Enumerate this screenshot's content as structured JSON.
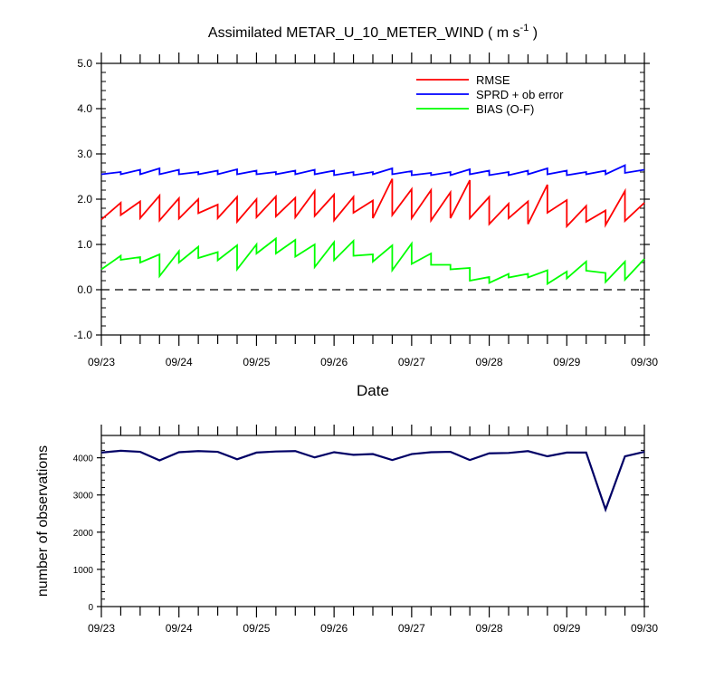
{
  "figure": {
    "title_main": "Assimilated METAR_U_10_METER_WIND ( m s",
    "title_sup": "-1",
    "title_end": " )"
  },
  "chart_data": [
    {
      "type": "line",
      "xlabel": "Date",
      "ylabel": "",
      "ylim": [
        -1.0,
        5.0
      ],
      "yticks": [
        "-1.0",
        "0.0",
        "1.0",
        "2.0",
        "3.0",
        "4.0",
        "5.0"
      ],
      "xlim": [
        "09/23 00:00",
        "09/30 00:00"
      ],
      "xticklabels": [
        "09/23",
        "09/24",
        "09/25",
        "09/26",
        "09/27",
        "09/28",
        "09/29",
        "09/30"
      ],
      "legend_position": "top-right",
      "zero_line": "dashed",
      "series": [
        {
          "name": "RMSE",
          "color": "#ff0000",
          "points": [
            [
              0.0,
              1.55
            ],
            [
              0.25,
              1.92
            ],
            [
              0.25,
              1.65
            ],
            [
              0.5,
              1.95
            ],
            [
              0.5,
              1.58
            ],
            [
              0.75,
              2.08
            ],
            [
              0.75,
              1.53
            ],
            [
              1.0,
              2.02
            ],
            [
              1.0,
              1.57
            ],
            [
              1.25,
              2.0
            ],
            [
              1.25,
              1.69
            ],
            [
              1.5,
              1.88
            ],
            [
              1.5,
              1.58
            ],
            [
              1.75,
              2.05
            ],
            [
              1.75,
              1.5
            ],
            [
              2.0,
              2.0
            ],
            [
              2.0,
              1.6
            ],
            [
              2.25,
              2.06
            ],
            [
              2.25,
              1.62
            ],
            [
              2.5,
              2.03
            ],
            [
              2.5,
              1.6
            ],
            [
              2.75,
              2.18
            ],
            [
              2.75,
              1.63
            ],
            [
              3.0,
              2.1
            ],
            [
              3.0,
              1.53
            ],
            [
              3.25,
              2.05
            ],
            [
              3.25,
              1.7
            ],
            [
              3.5,
              1.97
            ],
            [
              3.5,
              1.58
            ],
            [
              3.75,
              2.45
            ],
            [
              3.75,
              1.65
            ],
            [
              4.0,
              2.22
            ],
            [
              4.0,
              1.58
            ],
            [
              4.25,
              2.2
            ],
            [
              4.25,
              1.53
            ],
            [
              4.5,
              2.15
            ],
            [
              4.5,
              1.58
            ],
            [
              4.75,
              2.42
            ],
            [
              4.75,
              1.58
            ],
            [
              5.0,
              2.05
            ],
            [
              5.0,
              1.45
            ],
            [
              5.25,
              1.9
            ],
            [
              5.25,
              1.58
            ],
            [
              5.5,
              1.95
            ],
            [
              5.5,
              1.45
            ],
            [
              5.75,
              2.32
            ],
            [
              5.75,
              1.7
            ],
            [
              6.0,
              1.98
            ],
            [
              6.0,
              1.4
            ],
            [
              6.25,
              1.85
            ],
            [
              6.25,
              1.5
            ],
            [
              6.5,
              1.75
            ],
            [
              6.5,
              1.43
            ],
            [
              6.75,
              2.18
            ],
            [
              6.75,
              1.52
            ],
            [
              7.0,
              1.92
            ]
          ]
        },
        {
          "name": "SPRD + ob error",
          "color": "#0000ff",
          "points": [
            [
              0.0,
              2.55
            ],
            [
              0.25,
              2.6
            ],
            [
              0.25,
              2.55
            ],
            [
              0.5,
              2.65
            ],
            [
              0.5,
              2.55
            ],
            [
              0.75,
              2.68
            ],
            [
              0.75,
              2.55
            ],
            [
              1.0,
              2.65
            ],
            [
              1.0,
              2.55
            ],
            [
              1.25,
              2.6
            ],
            [
              1.25,
              2.55
            ],
            [
              1.5,
              2.63
            ],
            [
              1.5,
              2.55
            ],
            [
              1.75,
              2.66
            ],
            [
              1.75,
              2.55
            ],
            [
              2.0,
              2.63
            ],
            [
              2.0,
              2.55
            ],
            [
              2.25,
              2.6
            ],
            [
              2.25,
              2.55
            ],
            [
              2.5,
              2.63
            ],
            [
              2.5,
              2.55
            ],
            [
              2.75,
              2.65
            ],
            [
              2.75,
              2.55
            ],
            [
              3.0,
              2.63
            ],
            [
              3.0,
              2.53
            ],
            [
              3.25,
              2.6
            ],
            [
              3.25,
              2.53
            ],
            [
              3.5,
              2.6
            ],
            [
              3.5,
              2.55
            ],
            [
              3.75,
              2.68
            ],
            [
              3.75,
              2.55
            ],
            [
              4.0,
              2.62
            ],
            [
              4.0,
              2.53
            ],
            [
              4.25,
              2.58
            ],
            [
              4.25,
              2.53
            ],
            [
              4.5,
              2.6
            ],
            [
              4.5,
              2.53
            ],
            [
              4.75,
              2.66
            ],
            [
              4.75,
              2.55
            ],
            [
              5.0,
              2.63
            ],
            [
              5.0,
              2.53
            ],
            [
              5.25,
              2.6
            ],
            [
              5.25,
              2.53
            ],
            [
              5.5,
              2.63
            ],
            [
              5.5,
              2.55
            ],
            [
              5.75,
              2.68
            ],
            [
              5.75,
              2.55
            ],
            [
              6.0,
              2.63
            ],
            [
              6.0,
              2.53
            ],
            [
              6.25,
              2.6
            ],
            [
              6.25,
              2.55
            ],
            [
              6.5,
              2.63
            ],
            [
              6.5,
              2.55
            ],
            [
              6.75,
              2.75
            ],
            [
              6.75,
              2.58
            ],
            [
              7.0,
              2.65
            ]
          ]
        },
        {
          "name": "BIAS (O-F)",
          "color": "#00ff00",
          "points": [
            [
              0.0,
              0.45
            ],
            [
              0.25,
              0.75
            ],
            [
              0.25,
              0.66
            ],
            [
              0.5,
              0.72
            ],
            [
              0.5,
              0.6
            ],
            [
              0.75,
              0.78
            ],
            [
              0.75,
              0.3
            ],
            [
              1.0,
              0.85
            ],
            [
              1.0,
              0.6
            ],
            [
              1.25,
              0.95
            ],
            [
              1.25,
              0.7
            ],
            [
              1.5,
              0.83
            ],
            [
              1.5,
              0.65
            ],
            [
              1.75,
              0.98
            ],
            [
              1.75,
              0.45
            ],
            [
              2.0,
              1.0
            ],
            [
              2.0,
              0.8
            ],
            [
              2.25,
              1.13
            ],
            [
              2.25,
              0.8
            ],
            [
              2.5,
              1.1
            ],
            [
              2.5,
              0.73
            ],
            [
              2.75,
              1.0
            ],
            [
              2.75,
              0.5
            ],
            [
              3.0,
              1.05
            ],
            [
              3.0,
              0.65
            ],
            [
              3.25,
              1.08
            ],
            [
              3.25,
              0.75
            ],
            [
              3.5,
              0.78
            ],
            [
              3.5,
              0.62
            ],
            [
              3.75,
              0.98
            ],
            [
              3.75,
              0.43
            ],
            [
              4.0,
              1.02
            ],
            [
              4.0,
              0.57
            ],
            [
              4.25,
              0.8
            ],
            [
              4.25,
              0.55
            ],
            [
              4.5,
              0.55
            ],
            [
              4.5,
              0.45
            ],
            [
              4.75,
              0.48
            ],
            [
              4.75,
              0.2
            ],
            [
              5.0,
              0.28
            ],
            [
              5.0,
              0.15
            ],
            [
              5.25,
              0.35
            ],
            [
              5.25,
              0.27
            ],
            [
              5.5,
              0.35
            ],
            [
              5.5,
              0.27
            ],
            [
              5.75,
              0.43
            ],
            [
              5.75,
              0.13
            ],
            [
              6.0,
              0.4
            ],
            [
              6.0,
              0.25
            ],
            [
              6.25,
              0.62
            ],
            [
              6.25,
              0.42
            ],
            [
              6.5,
              0.37
            ],
            [
              6.5,
              0.17
            ],
            [
              6.75,
              0.62
            ],
            [
              6.75,
              0.22
            ],
            [
              7.0,
              0.68
            ]
          ]
        }
      ]
    },
    {
      "type": "line",
      "xlabel": "",
      "ylabel": "number of observations",
      "ylim": [
        0,
        4600
      ],
      "yticks": [
        "0",
        "1000",
        "2000",
        "3000",
        "4000"
      ],
      "xlim": [
        "09/23 00:00",
        "09/30 00:00"
      ],
      "xticklabels": [
        "09/23",
        "09/24",
        "09/25",
        "09/26",
        "09/27",
        "09/28",
        "09/29",
        "09/30"
      ],
      "series": [
        {
          "color": "#000066",
          "points": [
            [
              0.0,
              4140
            ],
            [
              0.25,
              4190
            ],
            [
              0.5,
              4160
            ],
            [
              0.75,
              3930
            ],
            [
              1.0,
              4150
            ],
            [
              1.25,
              4180
            ],
            [
              1.5,
              4160
            ],
            [
              1.75,
              3960
            ],
            [
              2.0,
              4140
            ],
            [
              2.25,
              4170
            ],
            [
              2.5,
              4180
            ],
            [
              2.75,
              4010
            ],
            [
              3.0,
              4150
            ],
            [
              3.25,
              4080
            ],
            [
              3.5,
              4100
            ],
            [
              3.75,
              3940
            ],
            [
              4.0,
              4100
            ],
            [
              4.25,
              4150
            ],
            [
              4.5,
              4160
            ],
            [
              4.75,
              3940
            ],
            [
              5.0,
              4120
            ],
            [
              5.25,
              4130
            ],
            [
              5.5,
              4180
            ],
            [
              5.75,
              4040
            ],
            [
              6.0,
              4140
            ],
            [
              6.25,
              4140
            ],
            [
              6.5,
              2610
            ],
            [
              6.75,
              4040
            ],
            [
              7.0,
              4160
            ]
          ]
        }
      ]
    }
  ]
}
